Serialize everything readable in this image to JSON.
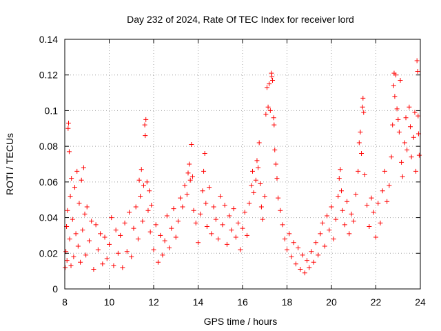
{
  "chart_data": {
    "type": "scatter",
    "title": "Day 232 of 2024, Rate Of TEC Index for receiver lord",
    "xlabel": "GPS time / hours",
    "ylabel": "ROTI / TECUs",
    "xlim": [
      8,
      24
    ],
    "ylim": [
      0,
      0.14
    ],
    "x_ticks": [
      8,
      10,
      12,
      14,
      16,
      18,
      20,
      22,
      24
    ],
    "x_tick_labels": [
      "8",
      "10",
      "12",
      "14",
      "16",
      "18",
      "20",
      "22",
      "24"
    ],
    "y_ticks": [
      0,
      0.02,
      0.04,
      0.06,
      0.08,
      0.1,
      0.12,
      0.14
    ],
    "y_tick_labels": [
      "0",
      "0.02",
      "0.04",
      "0.06",
      "0.08",
      "0.1",
      "0.12",
      "0.14"
    ],
    "grid": true,
    "marker": "plus",
    "color": "#ff0000",
    "series": [
      {
        "points": [
          [
            8.02,
            0.012
          ],
          [
            8.05,
            0.021
          ],
          [
            8.08,
            0.035
          ],
          [
            8.1,
            0.016
          ],
          [
            8.12,
            0.044
          ],
          [
            8.15,
            0.09
          ],
          [
            8.17,
            0.093
          ],
          [
            8.2,
            0.077
          ],
          [
            8.22,
            0.028
          ],
          [
            8.25,
            0.052
          ],
          [
            8.28,
            0.013
          ],
          [
            8.3,
            0.062
          ],
          [
            8.35,
            0.039
          ],
          [
            8.4,
            0.018
          ],
          [
            8.45,
            0.057
          ],
          [
            8.5,
            0.031
          ],
          [
            8.55,
            0.066
          ],
          [
            8.6,
            0.024
          ],
          [
            8.65,
            0.048
          ],
          [
            8.7,
            0.015
          ],
          [
            8.75,
            0.061
          ],
          [
            8.8,
            0.033
          ],
          [
            8.85,
            0.068
          ],
          [
            8.9,
            0.042
          ],
          [
            8.95,
            0.019
          ],
          [
            9.0,
            0.046
          ],
          [
            9.1,
            0.027
          ],
          [
            9.2,
            0.038
          ],
          [
            9.3,
            0.011
          ],
          [
            9.4,
            0.036
          ],
          [
            9.5,
            0.022
          ],
          [
            9.6,
            0.031
          ],
          [
            9.7,
            0.014
          ],
          [
            9.8,
            0.029
          ],
          [
            9.9,
            0.017
          ],
          [
            10.0,
            0.025
          ],
          [
            10.1,
            0.04
          ],
          [
            10.2,
            0.013
          ],
          [
            10.3,
            0.033
          ],
          [
            10.4,
            0.02
          ],
          [
            10.5,
            0.03
          ],
          [
            10.6,
            0.012
          ],
          [
            10.7,
            0.037
          ],
          [
            10.8,
            0.021
          ],
          [
            10.9,
            0.043
          ],
          [
            11.0,
            0.018
          ],
          [
            11.1,
            0.034
          ],
          [
            11.2,
            0.046
          ],
          [
            11.3,
            0.028
          ],
          [
            11.35,
            0.061
          ],
          [
            11.4,
            0.052
          ],
          [
            11.45,
            0.067
          ],
          [
            11.5,
            0.038
          ],
          [
            11.55,
            0.058
          ],
          [
            11.6,
            0.092
          ],
          [
            11.62,
            0.086
          ],
          [
            11.65,
            0.095
          ],
          [
            11.7,
            0.06
          ],
          [
            11.75,
            0.044
          ],
          [
            11.8,
            0.055
          ],
          [
            11.85,
            0.032
          ],
          [
            11.9,
            0.047
          ],
          [
            12.0,
            0.022
          ],
          [
            12.1,
            0.036
          ],
          [
            12.2,
            0.015
          ],
          [
            12.3,
            0.03
          ],
          [
            12.4,
            0.019
          ],
          [
            12.5,
            0.027
          ],
          [
            12.6,
            0.041
          ],
          [
            12.7,
            0.023
          ],
          [
            12.8,
            0.034
          ],
          [
            12.9,
            0.045
          ],
          [
            13.0,
            0.029
          ],
          [
            13.1,
            0.038
          ],
          [
            13.2,
            0.051
          ],
          [
            13.3,
            0.046
          ],
          [
            13.4,
            0.058
          ],
          [
            13.5,
            0.053
          ],
          [
            13.55,
            0.065
          ],
          [
            13.6,
            0.07
          ],
          [
            13.65,
            0.061
          ],
          [
            13.7,
            0.081
          ],
          [
            13.75,
            0.063
          ],
          [
            13.8,
            0.044
          ],
          [
            13.9,
            0.037
          ],
          [
            14.0,
            0.026
          ],
          [
            14.1,
            0.042
          ],
          [
            14.2,
            0.055
          ],
          [
            14.25,
            0.066
          ],
          [
            14.3,
            0.076
          ],
          [
            14.35,
            0.048
          ],
          [
            14.4,
            0.035
          ],
          [
            14.5,
            0.057
          ],
          [
            14.6,
            0.031
          ],
          [
            14.7,
            0.046
          ],
          [
            14.8,
            0.039
          ],
          [
            14.9,
            0.028
          ],
          [
            15.0,
            0.052
          ],
          [
            15.1,
            0.036
          ],
          [
            15.2,
            0.047
          ],
          [
            15.3,
            0.025
          ],
          [
            15.4,
            0.041
          ],
          [
            15.5,
            0.033
          ],
          [
            15.6,
            0.045
          ],
          [
            15.7,
            0.029
          ],
          [
            15.8,
            0.037
          ],
          [
            15.9,
            0.022
          ],
          [
            16.0,
            0.034
          ],
          [
            16.1,
            0.043
          ],
          [
            16.2,
            0.03
          ],
          [
            16.3,
            0.048
          ],
          [
            16.4,
            0.058
          ],
          [
            16.45,
            0.066
          ],
          [
            16.5,
            0.054
          ],
          [
            16.6,
            0.061
          ],
          [
            16.65,
            0.072
          ],
          [
            16.7,
            0.068
          ],
          [
            16.75,
            0.082
          ],
          [
            16.8,
            0.059
          ],
          [
            16.85,
            0.046
          ],
          [
            16.9,
            0.039
          ],
          [
            17.0,
            0.052
          ],
          [
            17.05,
            0.098
          ],
          [
            17.1,
            0.113
          ],
          [
            17.15,
            0.102
          ],
          [
            17.2,
            0.115
          ],
          [
            17.25,
            0.1
          ],
          [
            17.3,
            0.121
          ],
          [
            17.32,
            0.119
          ],
          [
            17.35,
            0.117
          ],
          [
            17.4,
            0.096
          ],
          [
            17.42,
            0.092
          ],
          [
            17.45,
            0.078
          ],
          [
            17.5,
            0.07
          ],
          [
            17.55,
            0.062
          ],
          [
            17.6,
            0.051
          ],
          [
            17.7,
            0.044
          ],
          [
            17.8,
            0.036
          ],
          [
            17.9,
            0.028
          ],
          [
            18.0,
            0.022
          ],
          [
            18.1,
            0.031
          ],
          [
            18.2,
            0.018
          ],
          [
            18.3,
            0.026
          ],
          [
            18.4,
            0.014
          ],
          [
            18.5,
            0.023
          ],
          [
            18.6,
            0.011
          ],
          [
            18.7,
            0.019
          ],
          [
            18.8,
            0.009
          ],
          [
            18.9,
            0.016
          ],
          [
            19.0,
            0.012
          ],
          [
            19.1,
            0.021
          ],
          [
            19.2,
            0.015
          ],
          [
            19.3,
            0.026
          ],
          [
            19.4,
            0.019
          ],
          [
            19.5,
            0.031
          ],
          [
            19.6,
            0.037
          ],
          [
            19.7,
            0.024
          ],
          [
            19.8,
            0.041
          ],
          [
            19.9,
            0.033
          ],
          [
            20.0,
            0.046
          ],
          [
            20.1,
            0.028
          ],
          [
            20.2,
            0.039
          ],
          [
            20.3,
            0.052
          ],
          [
            20.35,
            0.062
          ],
          [
            20.4,
            0.067
          ],
          [
            20.45,
            0.055
          ],
          [
            20.5,
            0.044
          ],
          [
            20.6,
            0.036
          ],
          [
            20.7,
            0.049
          ],
          [
            20.8,
            0.031
          ],
          [
            20.9,
            0.042
          ],
          [
            21.0,
            0.038
          ],
          [
            21.1,
            0.053
          ],
          [
            21.2,
            0.066
          ],
          [
            21.25,
            0.082
          ],
          [
            21.3,
            0.088
          ],
          [
            21.35,
            0.076
          ],
          [
            21.4,
            0.102
          ],
          [
            21.42,
            0.107
          ],
          [
            21.45,
            0.099
          ],
          [
            21.5,
            0.064
          ],
          [
            21.6,
            0.047
          ],
          [
            21.7,
            0.035
          ],
          [
            21.8,
            0.051
          ],
          [
            21.9,
            0.043
          ],
          [
            22.0,
            0.029
          ],
          [
            22.1,
            0.048
          ],
          [
            22.2,
            0.037
          ],
          [
            22.3,
            0.055
          ],
          [
            22.4,
            0.066
          ],
          [
            22.5,
            0.049
          ],
          [
            22.6,
            0.058
          ],
          [
            22.7,
            0.074
          ],
          [
            22.75,
            0.092
          ],
          [
            22.8,
            0.114
          ],
          [
            22.82,
            0.121
          ],
          [
            22.85,
            0.108
          ],
          [
            22.9,
            0.12
          ],
          [
            22.95,
            0.101
          ],
          [
            23.0,
            0.095
          ],
          [
            23.05,
            0.088
          ],
          [
            23.1,
            0.117
          ],
          [
            23.15,
            0.071
          ],
          [
            23.2,
            0.063
          ],
          [
            23.3,
            0.082
          ],
          [
            23.35,
            0.096
          ],
          [
            23.4,
            0.078
          ],
          [
            23.5,
            0.102
          ],
          [
            23.55,
            0.091
          ],
          [
            23.6,
            0.074
          ],
          [
            23.7,
            0.085
          ],
          [
            23.75,
            0.099
          ],
          [
            23.8,
            0.066
          ],
          [
            23.85,
            0.128
          ],
          [
            23.88,
            0.122
          ],
          [
            23.9,
            0.097
          ],
          [
            23.92,
            0.087
          ],
          [
            23.95,
            0.075
          ]
        ]
      }
    ]
  }
}
